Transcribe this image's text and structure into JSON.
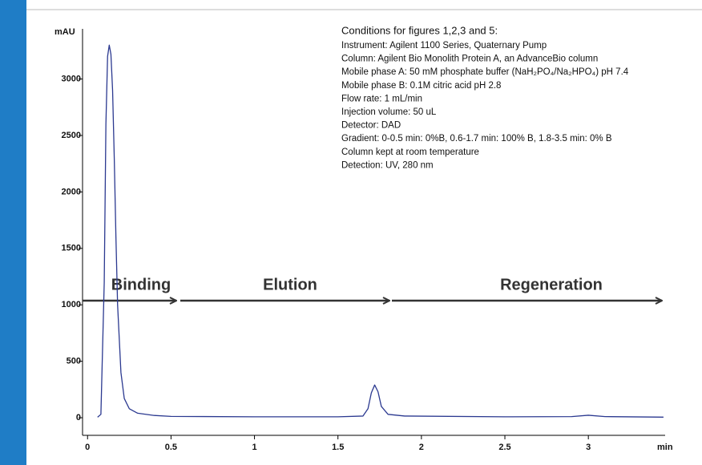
{
  "chart_data": {
    "type": "line",
    "y_label": "mAU",
    "x_label": "min",
    "xlim": [
      -0.03,
      3.46
    ],
    "ylim": [
      -156,
      3430
    ],
    "xticks": [
      0,
      0.5,
      1,
      1.5,
      2,
      2.5,
      3
    ],
    "yticks": [
      0,
      500,
      1000,
      1500,
      2000,
      2500,
      3000
    ],
    "color": "#2b3990",
    "x": [
      0.06,
      0.08,
      0.1,
      0.11,
      0.12,
      0.13,
      0.14,
      0.15,
      0.16,
      0.17,
      0.18,
      0.2,
      0.22,
      0.25,
      0.3,
      0.4,
      0.5,
      1.0,
      1.5,
      1.65,
      1.68,
      1.7,
      1.72,
      1.74,
      1.76,
      1.8,
      1.9,
      2.5,
      2.9,
      3.0,
      3.1,
      3.45
    ],
    "values": [
      5,
      30,
      1200,
      2600,
      3200,
      3300,
      3220,
      2900,
      2300,
      1600,
      1000,
      400,
      170,
      80,
      40,
      20,
      12,
      8,
      8,
      15,
      80,
      220,
      290,
      230,
      100,
      30,
      15,
      8,
      10,
      22,
      10,
      5
    ],
    "annotations": [
      "Binding",
      "Elution",
      "Regeneration"
    ],
    "conditions_title": "Conditions for figures 1,2,3 and 5:",
    "conditions": [
      "Instrument:  Agilent 1100 Series, Quaternary Pump",
      "Column:  Agilent Bio Monolith Protein A, an AdvanceBio column",
      "Mobile phase A: 50 mM phosphate buffer (NaH₂PO₄/Na₂HPO₄)  pH 7.4",
      "Mobile phase B: 0.1M citric acid pH 2.8",
      "Flow rate: 1 mL/min",
      "Injection volume:  50 uL",
      "Detector:  DAD",
      "Gradient:  0-0.5 min: 0%B, 0.6-1.7 min: 100% B, 1.8-3.5 min: 0% B",
      "Column kept at room temperature",
      "Detection: UV, 280 nm"
    ]
  }
}
